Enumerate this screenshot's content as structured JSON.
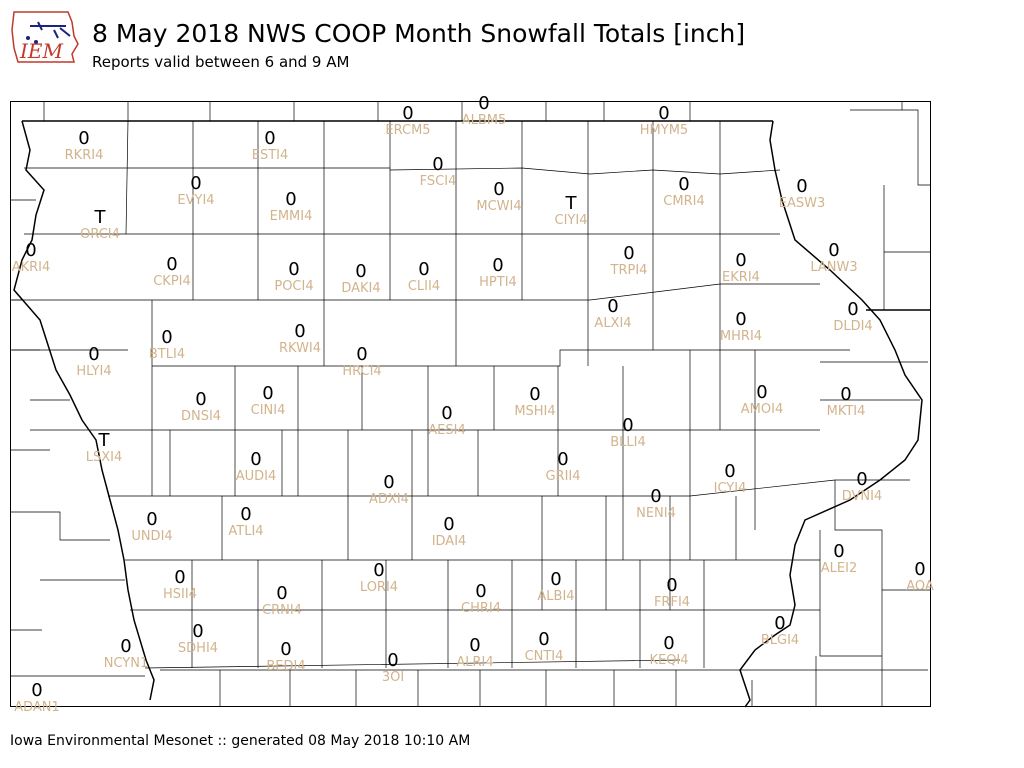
{
  "header": {
    "title": "8 May 2018 NWS COOP Month Snowfall Totals [inch]",
    "subtitle": "Reports valid between 6 and 9 AM"
  },
  "logo": {
    "text": "IEM",
    "icon": "iem-logo-icon"
  },
  "footer": {
    "text": "Iowa Environmental Mesonet :: generated 08 May 2018 10:10 AM"
  },
  "colors": {
    "value_text": "#000000",
    "station_text": "#d2b48c",
    "county_lines": "#000000",
    "logo_red": "#c0392b",
    "logo_blue": "#1a237e"
  },
  "stations": [
    {
      "id": "RKRI4",
      "value": "0"
    },
    {
      "id": "ESTI4",
      "value": "0"
    },
    {
      "id": "ERCM5",
      "value": "0"
    },
    {
      "id": "ALBM5",
      "value": "0"
    },
    {
      "id": "HMYM5",
      "value": "0"
    },
    {
      "id": "FSCI4",
      "value": "0"
    },
    {
      "id": "EVYI4",
      "value": "0"
    },
    {
      "id": "EMMI4",
      "value": "0"
    },
    {
      "id": "MCWI4",
      "value": "0"
    },
    {
      "id": "CIYI4",
      "value": "T"
    },
    {
      "id": "CMRI4",
      "value": "0"
    },
    {
      "id": "EASW3",
      "value": "0"
    },
    {
      "id": "ORCI4",
      "value": "T"
    },
    {
      "id": "AKRI4",
      "value": "0"
    },
    {
      "id": "CKPI4",
      "value": "0"
    },
    {
      "id": "POCI4",
      "value": "0"
    },
    {
      "id": "DAKI4",
      "value": "0"
    },
    {
      "id": "CLII4",
      "value": "0"
    },
    {
      "id": "HPTI4",
      "value": "0"
    },
    {
      "id": "TRPI4",
      "value": "0"
    },
    {
      "id": "EKRI4",
      "value": "0"
    },
    {
      "id": "LANW3",
      "value": "0"
    },
    {
      "id": "ALXI4",
      "value": "0"
    },
    {
      "id": "DLDI4",
      "value": "0"
    },
    {
      "id": "MHRI4",
      "value": "0"
    },
    {
      "id": "BTLI4",
      "value": "0"
    },
    {
      "id": "RKWI4",
      "value": "0"
    },
    {
      "id": "HLYI4",
      "value": "0"
    },
    {
      "id": "HRCI4",
      "value": "0"
    },
    {
      "id": "DNSI4",
      "value": "0"
    },
    {
      "id": "CINI4",
      "value": "0"
    },
    {
      "id": "MSHI4",
      "value": "0"
    },
    {
      "id": "AMOI4",
      "value": "0"
    },
    {
      "id": "MKTI4",
      "value": "0"
    },
    {
      "id": "AESI4",
      "value": "0"
    },
    {
      "id": "BLLI4",
      "value": "0"
    },
    {
      "id": "LSXI4",
      "value": "T"
    },
    {
      "id": "AUDI4",
      "value": "0"
    },
    {
      "id": "GRII4",
      "value": "0"
    },
    {
      "id": "ADXI4",
      "value": "0"
    },
    {
      "id": "ICYI4",
      "value": "0"
    },
    {
      "id": "DVNI4",
      "value": "0"
    },
    {
      "id": "NENI4",
      "value": "0"
    },
    {
      "id": "UNDI4",
      "value": "0"
    },
    {
      "id": "ATLI4",
      "value": "0"
    },
    {
      "id": "IDAI4",
      "value": "0"
    },
    {
      "id": "ALEI2",
      "value": "0"
    },
    {
      "id": "HSII4",
      "value": "0"
    },
    {
      "id": "LORI4",
      "value": "0"
    },
    {
      "id": "CRNI4",
      "value": "0"
    },
    {
      "id": "CHRI4",
      "value": "0"
    },
    {
      "id": "ALBI4",
      "value": "0"
    },
    {
      "id": "FRFI4",
      "value": "0"
    },
    {
      "id": "AOA",
      "value": "0"
    },
    {
      "id": "SDHI4",
      "value": "0"
    },
    {
      "id": "NCYN1",
      "value": "0"
    },
    {
      "id": "BEDI4",
      "value": "0"
    },
    {
      "id": "ALRI4",
      "value": "0"
    },
    {
      "id": "CNTI4",
      "value": "0"
    },
    {
      "id": "KEQI4",
      "value": "0"
    },
    {
      "id": "BLGI4",
      "value": "0"
    },
    {
      "id": "3OI",
      "value": "0"
    },
    {
      "id": "ADAN1",
      "value": "0"
    }
  ]
}
